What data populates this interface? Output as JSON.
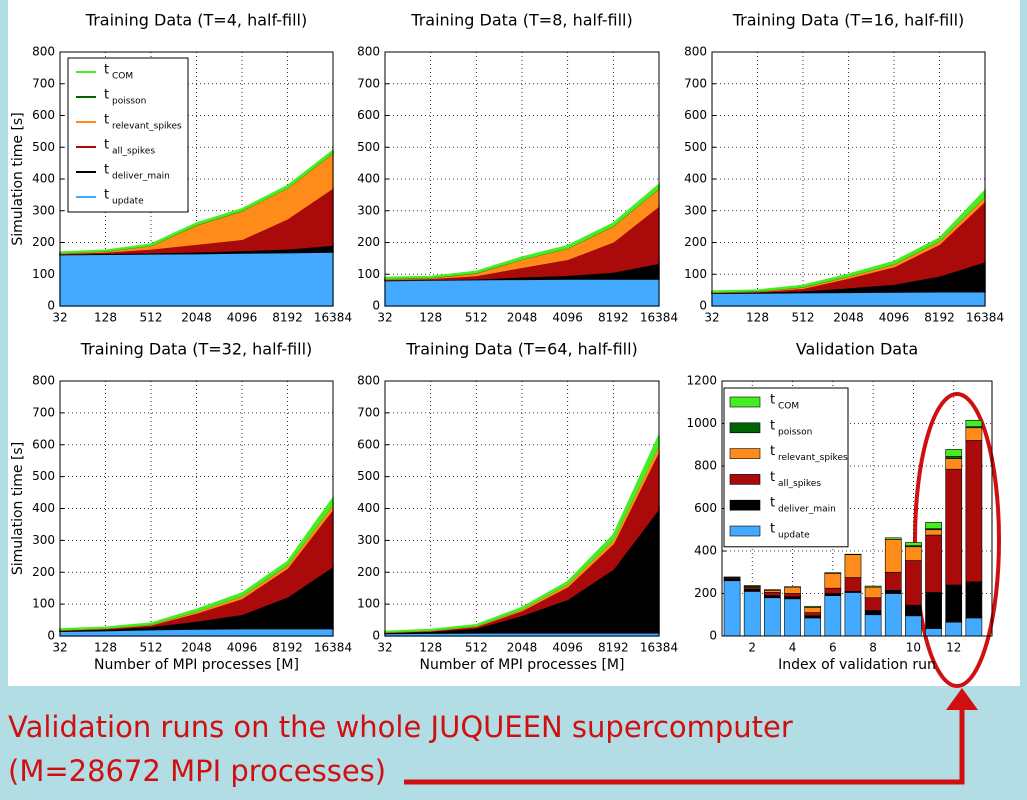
{
  "chart_data": [
    {
      "type": "area",
      "title": "Training Data (T=4, half-fill)",
      "ylabel": "Simulation time [s]",
      "categories": [
        "32",
        "128",
        "512",
        "2048",
        "4096",
        "8192",
        "16384"
      ],
      "ylim": [
        0,
        800
      ],
      "yticks": [
        0,
        100,
        200,
        300,
        400,
        500,
        600,
        700,
        800
      ],
      "grid": true,
      "legend": "upper left",
      "series": [
        {
          "name": "t",
          "subscript": "COM",
          "color": "#44ee22",
          "values": [
            2,
            2,
            4,
            5,
            5,
            6,
            7
          ]
        },
        {
          "name": "t",
          "subscript": "poisson",
          "color": "#006400",
          "values": [
            0.5,
            0.5,
            1,
            1,
            1,
            1,
            1
          ]
        },
        {
          "name": "t",
          "subscript": "relevant_spikes",
          "color": "#ff8c1a",
          "values": [
            1,
            3,
            10,
            60,
            90,
            97,
            110
          ]
        },
        {
          "name": "t",
          "subscript": "all_spikes",
          "color": "#aa0a0a",
          "values": [
            2,
            4,
            12,
            24,
            35,
            95,
            180
          ]
        },
        {
          "name": "t",
          "subscript": "deliver_main",
          "color": "#000000",
          "values": [
            2,
            3,
            4,
            6,
            8,
            12,
            22
          ]
        },
        {
          "name": "t",
          "subscript": "update",
          "color": "#44aaff",
          "values": [
            162,
            163,
            164,
            165,
            167,
            168,
            170
          ]
        }
      ]
    },
    {
      "type": "area",
      "title": "Training Data (T=8, half-fill)",
      "categories": [
        "32",
        "128",
        "512",
        "2048",
        "4096",
        "8192",
        "16384"
      ],
      "ylim": [
        0,
        800
      ],
      "yticks": [
        0,
        100,
        200,
        300,
        400,
        500,
        600,
        700,
        800
      ],
      "grid": true,
      "series": [
        {
          "color": "#44ee22",
          "values": [
            3,
            3,
            4,
            6,
            7,
            8,
            12
          ]
        },
        {
          "color": "#006400",
          "values": [
            1,
            1,
            1,
            1,
            1,
            1,
            1
          ]
        },
        {
          "color": "#ff8c1a",
          "values": [
            2,
            2,
            8,
            25,
            35,
            50,
            55
          ]
        },
        {
          "color": "#aa0a0a",
          "values": [
            2,
            3,
            10,
            30,
            50,
            95,
            180
          ]
        },
        {
          "color": "#000000",
          "values": [
            2,
            2,
            3,
            8,
            12,
            22,
            50
          ]
        },
        {
          "color": "#44aaff",
          "values": [
            80,
            82,
            83,
            84,
            85,
            85,
            85
          ]
        }
      ]
    },
    {
      "type": "area",
      "title": "Training Data (T=16, half-fill)",
      "categories": [
        "32",
        "128",
        "512",
        "2048",
        "4096",
        "8192",
        "16384"
      ],
      "ylim": [
        0,
        800
      ],
      "yticks": [
        0,
        100,
        200,
        300,
        400,
        500,
        600,
        700,
        800
      ],
      "grid": true,
      "series": [
        {
          "color": "#44ee22",
          "values": [
            2,
            2,
            4,
            5,
            7,
            8,
            18
          ]
        },
        {
          "color": "#006400",
          "values": [
            1,
            1,
            1,
            1,
            1,
            1,
            1
          ]
        },
        {
          "color": "#ff8c1a",
          "values": [
            1,
            1,
            4,
            6,
            8,
            10,
            15
          ]
        },
        {
          "color": "#aa0a0a",
          "values": [
            1,
            2,
            8,
            30,
            55,
            100,
            190
          ]
        },
        {
          "color": "#000000",
          "values": [
            2,
            3,
            6,
            15,
            25,
            50,
            95
          ]
        },
        {
          "color": "#44aaff",
          "values": [
            40,
            41,
            42,
            43,
            44,
            45,
            45
          ]
        }
      ]
    },
    {
      "type": "area",
      "title": "Training Data (T=32, half-fill)",
      "ylabel": "Simulation time [s]",
      "xlabel": "Number of MPI processes [M]",
      "categories": [
        "32",
        "128",
        "512",
        "2048",
        "4096",
        "8192",
        "16384"
      ],
      "ylim": [
        0,
        800
      ],
      "yticks": [
        0,
        100,
        200,
        300,
        400,
        500,
        600,
        700,
        800
      ],
      "grid": true,
      "series": [
        {
          "color": "#44ee22",
          "values": [
            2,
            2,
            3,
            6,
            8,
            10,
            20
          ]
        },
        {
          "color": "#006400",
          "values": [
            0.5,
            0.5,
            0.5,
            0.5,
            0.5,
            0.5,
            0.5
          ]
        },
        {
          "color": "#ff8c1a",
          "values": [
            1,
            1,
            2,
            5,
            8,
            10,
            15
          ]
        },
        {
          "color": "#aa0a0a",
          "values": [
            1,
            2,
            5,
            25,
            50,
            90,
            180
          ]
        },
        {
          "color": "#000000",
          "values": [
            3,
            5,
            10,
            25,
            45,
            100,
            195
          ]
        },
        {
          "color": "#44aaff",
          "values": [
            15,
            17,
            20,
            22,
            23,
            23,
            23
          ]
        }
      ]
    },
    {
      "type": "area",
      "title": "Training Data (T=64, half-fill)",
      "xlabel": "Number of MPI processes [M]",
      "categories": [
        "32",
        "128",
        "512",
        "2048",
        "4096",
        "8192",
        "16384"
      ],
      "ylim": [
        0,
        800
      ],
      "yticks": [
        0,
        100,
        200,
        300,
        400,
        500,
        600,
        700,
        800
      ],
      "grid": true,
      "series": [
        {
          "color": "#44ee22",
          "values": [
            1,
            2,
            3,
            5,
            7,
            15,
            30
          ]
        },
        {
          "color": "#006400",
          "values": [
            0.5,
            0.5,
            0.5,
            0.5,
            0.5,
            0.5,
            0.5
          ]
        },
        {
          "color": "#ff8c1a",
          "values": [
            1,
            1,
            2,
            4,
            8,
            12,
            20
          ]
        },
        {
          "color": "#aa0a0a",
          "values": [
            1,
            2,
            5,
            15,
            40,
            80,
            180
          ]
        },
        {
          "color": "#000000",
          "values": [
            3,
            6,
            15,
            55,
            105,
            200,
            390
          ]
        },
        {
          "color": "#44aaff",
          "values": [
            8,
            9,
            10,
            10,
            10,
            10,
            10
          ]
        }
      ]
    },
    {
      "type": "bar",
      "title": "Validation Data",
      "xlabel": "Index of validation run",
      "x": [
        1,
        2,
        3,
        4,
        5,
        6,
        7,
        8,
        9,
        10,
        11,
        12,
        13
      ],
      "xlim": [
        0.5,
        13.9
      ],
      "xticks": [
        2,
        4,
        6,
        8,
        10,
        12
      ],
      "ylim": [
        0,
        1200
      ],
      "yticks": [
        0,
        200,
        400,
        600,
        800,
        1000,
        1200
      ],
      "grid": true,
      "legend": "upper left",
      "series": [
        {
          "name": "t",
          "subscript": "COM",
          "color": "#44ee22",
          "values": [
            3,
            5,
            3,
            2,
            5,
            3,
            2,
            5,
            7,
            15,
            30,
            33,
            30
          ]
        },
        {
          "name": "t",
          "subscript": "poisson",
          "color": "#006400",
          "values": [
            0,
            0,
            0,
            0,
            0,
            0,
            0,
            0,
            0,
            5,
            5,
            10,
            5
          ]
        },
        {
          "name": "t",
          "subscript": "relevant_spikes",
          "color": "#ff8c1a",
          "values": [
            0,
            3,
            10,
            30,
            25,
            70,
            108,
            50,
            155,
            65,
            25,
            50,
            60
          ]
        },
        {
          "name": "t",
          "subscript": "all_spikes",
          "color": "#aa0a0a",
          "values": [
            5,
            10,
            15,
            15,
            15,
            25,
            65,
            60,
            85,
            210,
            270,
            545,
            665
          ]
        },
        {
          "name": "t",
          "subscript": "deliver_main",
          "color": "#000000",
          "values": [
            10,
            10,
            10,
            10,
            10,
            10,
            5,
            20,
            15,
            50,
            170,
            175,
            170
          ]
        },
        {
          "name": "t",
          "subscript": "update",
          "color": "#44aaff",
          "values": [
            260,
            210,
            180,
            175,
            85,
            190,
            205,
            100,
            200,
            95,
            35,
            65,
            85
          ]
        }
      ]
    }
  ],
  "annotation": {
    "lines": [
      "Validation runs on the whole JUQUEEN supercomputer",
      "(M=28672 MPI processes)"
    ]
  }
}
